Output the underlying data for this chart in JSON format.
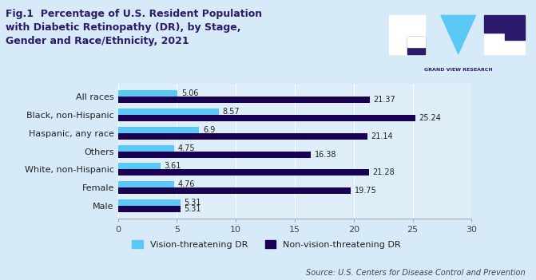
{
  "title_line1": "Fig.1  Percentage of U.S. Resident Population",
  "title_line2": "with Diabetic Retinopathy (DR), by Stage,",
  "title_line3": "Gender and Race/Ethnicity, 2021",
  "categories": [
    "Male",
    "Female",
    "White, non-Hispanic",
    "Others",
    "Haspanic, any race",
    "Black, non-Hispanic",
    "All races"
  ],
  "vision_threatening": [
    5.31,
    4.76,
    3.61,
    4.75,
    6.9,
    8.57,
    5.06
  ],
  "non_vision_threatening": [
    5.31,
    19.75,
    21.28,
    16.38,
    21.14,
    25.24,
    21.37
  ],
  "color_vision": "#5bc8f5",
  "color_non_vision": "#1a0050",
  "background_color": "#d6eaf8",
  "plot_bg_color": "#ddeef8",
  "xlabel_color": "#333333",
  "title_color": "#2d1a6b",
  "xlim": [
    0,
    30
  ],
  "xticks": [
    0,
    5,
    10,
    15,
    20,
    25,
    30
  ],
  "legend_vision": "Vision-threatening DR",
  "legend_non_vision": "Non-vision-threatening DR",
  "source_text": "Source: U.S. Centers for Disease Control and Prevention",
  "bar_height": 0.35
}
